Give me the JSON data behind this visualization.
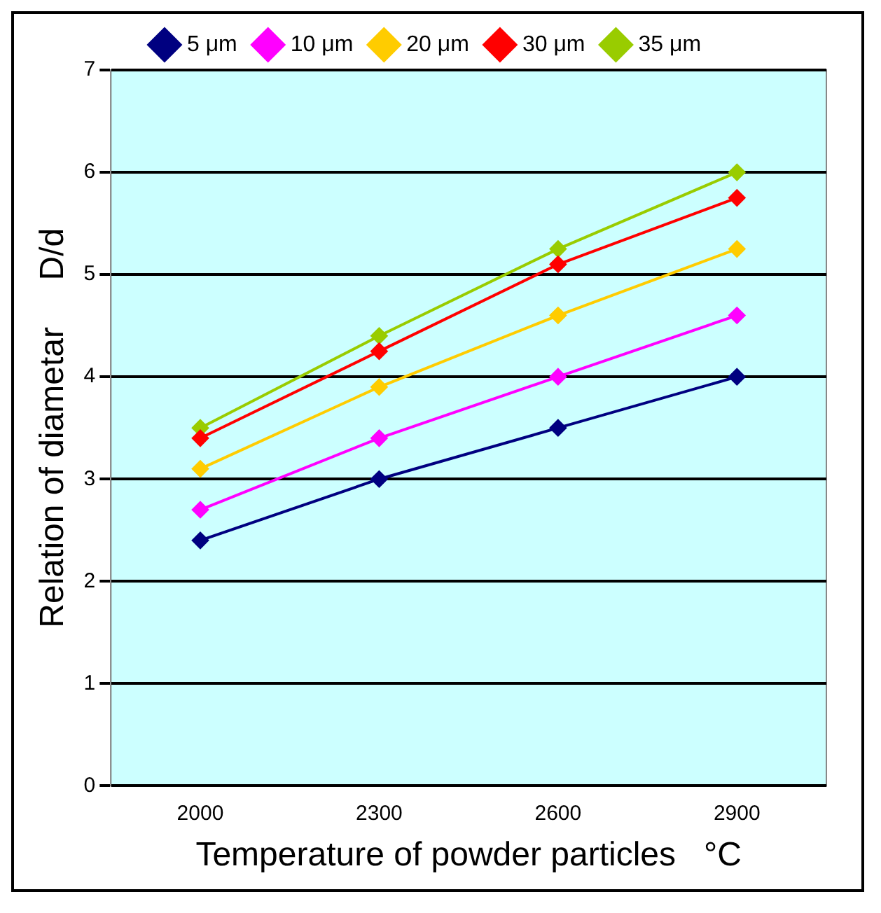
{
  "chart_data": {
    "type": "line",
    "xlabel": "Temperature of powder particles   °C",
    "ylabel": "Relation of diametar     D/d",
    "categories": [
      "2000",
      "2300",
      "2600",
      "2900"
    ],
    "series": [
      {
        "name": "5 μm",
        "color": "#000080",
        "values": [
          2.4,
          3.0,
          3.5,
          4.0
        ]
      },
      {
        "name": "10 μm",
        "color": "#ff00ff",
        "values": [
          2.7,
          3.4,
          4.0,
          4.6
        ]
      },
      {
        "name": "20 μm",
        "color": "#ffcc00",
        "values": [
          3.1,
          3.9,
          4.6,
          5.25
        ]
      },
      {
        "name": "30 μm",
        "color": "#ff0000",
        "values": [
          3.4,
          4.25,
          5.1,
          5.75
        ]
      },
      {
        "name": "35 μm",
        "color": "#99cc00",
        "values": [
          3.5,
          4.4,
          5.25,
          6.0
        ]
      }
    ],
    "ylim": [
      0,
      7
    ],
    "yticks": [
      0,
      1,
      2,
      3,
      4,
      5,
      6,
      7
    ],
    "grid": "y",
    "legend": "top",
    "marker": "diamond",
    "line_style": "solid"
  }
}
